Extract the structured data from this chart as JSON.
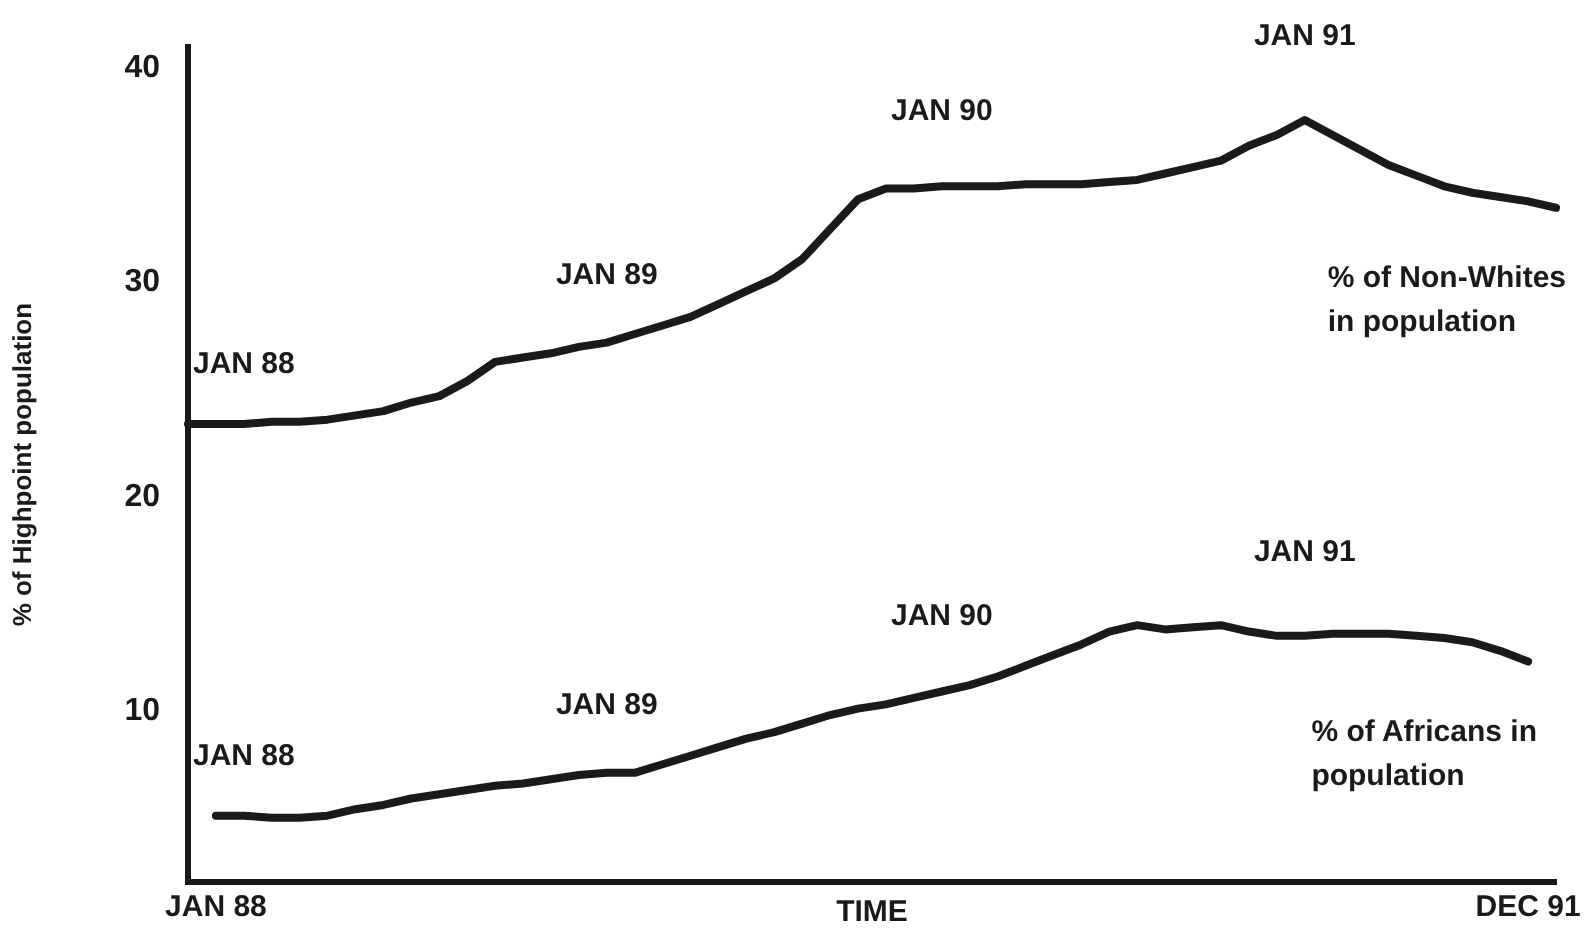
{
  "chart_data": {
    "type": "line",
    "xlabel": "TIME",
    "ylabel": "% of Highpoint population",
    "categories": [
      null,
      "JAN 88",
      null,
      null,
      null,
      null,
      null,
      null,
      null,
      null,
      null,
      null,
      null,
      null,
      null,
      null,
      null,
      null,
      null,
      null,
      null,
      null,
      null,
      null,
      null,
      null,
      null,
      null,
      null,
      null,
      null,
      null,
      null,
      null,
      null,
      null,
      null,
      null,
      null,
      null,
      null,
      null,
      null,
      null,
      null,
      null,
      null,
      null,
      "DEC 91",
      null
    ],
    "ylim": [
      2,
      41
    ],
    "yticks": [
      10,
      20,
      30,
      40
    ],
    "grid": false,
    "legend": false,
    "marker": "none",
    "line_style": "solid",
    "series": [
      {
        "name": "% of Non-Whites in population",
        "color": "#1a1a1a",
        "values": [
          23.4,
          23.4,
          23.4,
          23.5,
          23.5,
          23.6,
          23.8,
          24.0,
          24.4,
          24.7,
          25.4,
          26.3,
          26.5,
          26.7,
          27.0,
          27.2,
          27.6,
          28.0,
          28.4,
          29.0,
          29.6,
          30.2,
          31.1,
          32.5,
          33.9,
          34.4,
          34.4,
          34.5,
          34.5,
          34.5,
          34.6,
          34.6,
          34.6,
          34.7,
          34.8,
          35.1,
          35.4,
          35.7,
          36.4,
          36.9,
          37.6,
          36.9,
          36.2,
          35.5,
          35.0,
          34.5,
          34.2,
          34.0,
          33.8,
          33.5
        ]
      },
      {
        "name": "% of Africans in population",
        "color": "#1a1a1a",
        "values": [
          null,
          5.1,
          5.1,
          5.0,
          5.0,
          5.1,
          5.4,
          5.6,
          5.9,
          6.1,
          6.3,
          6.5,
          6.6,
          6.8,
          7.0,
          7.1,
          7.1,
          7.5,
          7.9,
          8.3,
          8.7,
          9.0,
          9.4,
          9.8,
          10.1,
          10.3,
          10.6,
          10.9,
          11.2,
          11.6,
          12.1,
          12.6,
          13.1,
          13.7,
          14.0,
          13.8,
          13.9,
          14.0,
          13.7,
          13.5,
          13.5,
          13.6,
          13.6,
          13.6,
          13.5,
          13.4,
          13.2,
          12.8,
          12.3,
          null
        ]
      }
    ],
    "annotations": [
      "JAN 88",
      "JAN 89",
      "JAN 90",
      "JAN 91",
      "JAN 88",
      "JAN 89",
      "JAN 90",
      "JAN 91"
    ]
  }
}
